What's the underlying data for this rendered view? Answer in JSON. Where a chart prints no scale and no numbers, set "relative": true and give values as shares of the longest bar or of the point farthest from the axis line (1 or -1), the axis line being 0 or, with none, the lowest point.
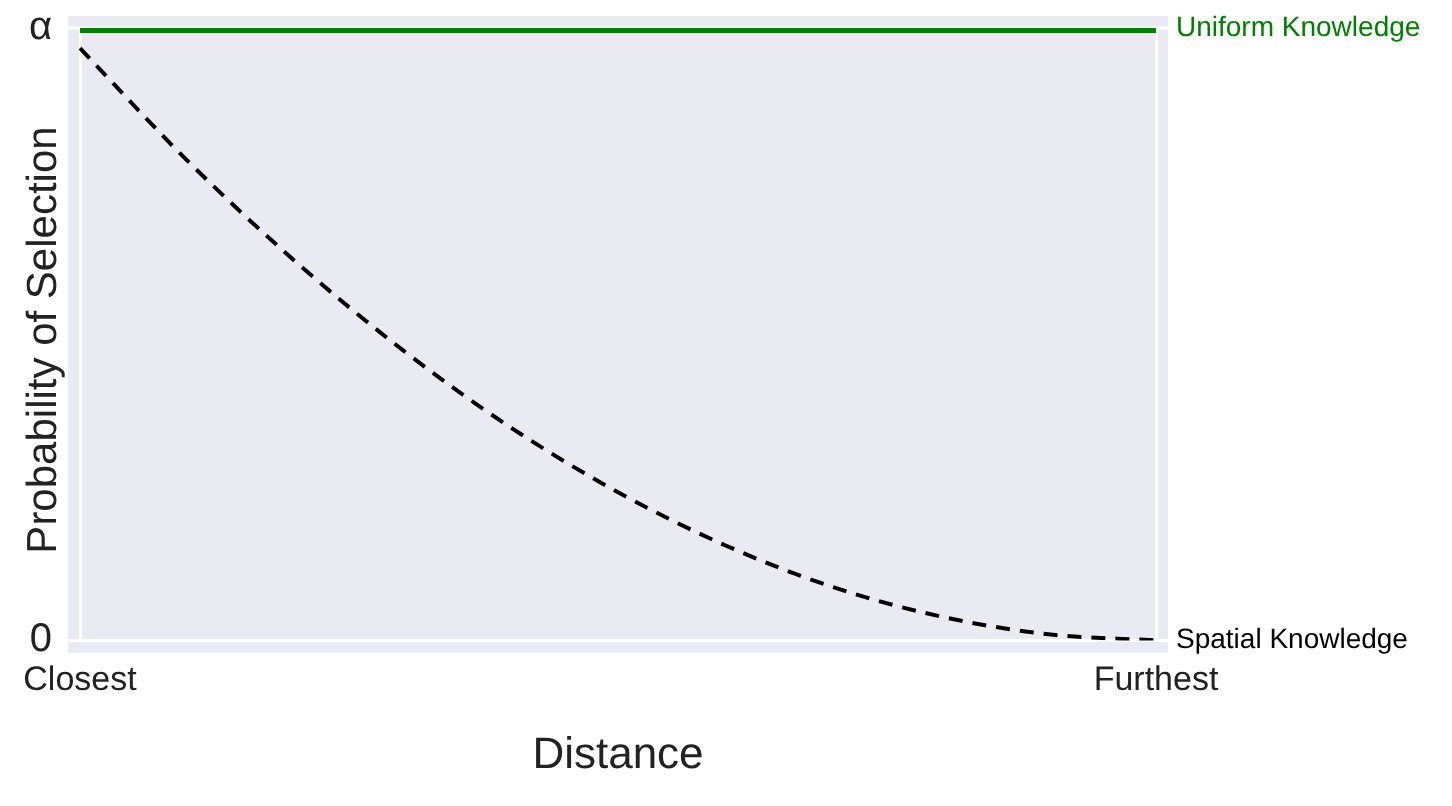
{
  "chart_data": {
    "type": "line",
    "xlabel": "Distance",
    "ylabel": "Probability of Selection",
    "relative": true,
    "categories": [
      "Closest",
      null,
      null,
      null,
      null,
      null,
      null,
      null,
      null,
      null,
      "Furthest"
    ],
    "annotations": [
      "0",
      "α"
    ],
    "grid": true,
    "legend": false,
    "marker": "none",
    "series": [
      {
        "name": "Uniform Knowledge",
        "color": "#008000",
        "line_style": "solid",
        "values": [
          1,
          1,
          1,
          1,
          1,
          1,
          1,
          1,
          1,
          1,
          1
        ]
      },
      {
        "name": "Spatial Knowledge",
        "color": "#000000",
        "line_style": "dashed",
        "values": [
          0.967,
          0.783,
          0.619,
          0.474,
          0.348,
          0.242,
          0.155,
          0.087,
          0.039,
          0.01,
          0
        ]
      }
    ]
  }
}
